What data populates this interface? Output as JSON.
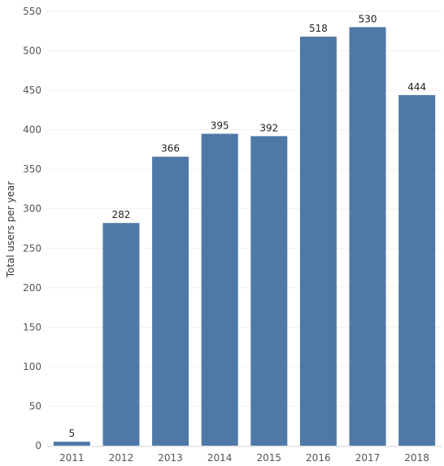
{
  "chart_data": {
    "type": "bar",
    "categories": [
      "2011",
      "2012",
      "2013",
      "2014",
      "2015",
      "2016",
      "2017",
      "2018"
    ],
    "values": [
      5,
      282,
      366,
      395,
      392,
      518,
      530,
      444
    ],
    "data_labels": [
      "5",
      "282",
      "366",
      "395",
      "392",
      "518",
      "530",
      "444"
    ],
    "ylabel": "Total users per year",
    "xlabel": "",
    "title": "",
    "ylim": [
      0,
      550
    ],
    "y_ticks": [
      0,
      50,
      100,
      150,
      200,
      250,
      300,
      350,
      400,
      450,
      500,
      550
    ],
    "y_tick_labels": [
      "0",
      "50",
      "100",
      "150",
      "200",
      "250",
      "300",
      "350",
      "400",
      "450",
      "500",
      "550"
    ],
    "grid": true,
    "legend": "none",
    "bar_color": "#4e79a7"
  }
}
